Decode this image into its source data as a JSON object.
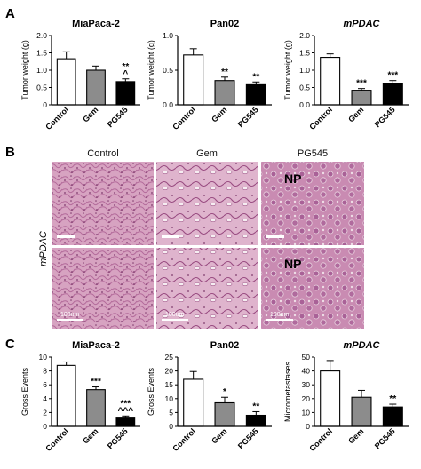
{
  "panel_letters": [
    "A",
    "B",
    "C"
  ],
  "histology": {
    "columns": [
      "Control",
      "Gem",
      "PG545"
    ],
    "row_label": "mPDAC",
    "np_label": "NP",
    "scale_label": "100um"
  },
  "colors": {
    "Control": "#ffffff",
    "Gem": "#8c8c8c",
    "PG545": "#000000",
    "tissue_pink": "#d9a6c3",
    "tissue_dark": "#a0588a"
  },
  "chart_data": [
    {
      "type": "bar",
      "title": "MiaPaca-2",
      "title_italic": false,
      "ylabel": "Tumor weight (g)",
      "categories": [
        "Control",
        "Gem",
        "PG545"
      ],
      "values": [
        1.33,
        1.0,
        0.67
      ],
      "errors": [
        0.2,
        0.12,
        0.08
      ],
      "ylim": [
        0,
        2.0
      ],
      "yticks": [
        "0",
        "0.5",
        "1.0",
        "1.5",
        "2.0"
      ],
      "annotations": [
        "",
        "",
        "**\n^"
      ]
    },
    {
      "type": "bar",
      "title": "Pan02",
      "title_italic": false,
      "ylabel": "Tumor weight (g)",
      "categories": [
        "Control",
        "Gem",
        "PG545"
      ],
      "values": [
        0.72,
        0.35,
        0.29
      ],
      "errors": [
        0.09,
        0.05,
        0.04
      ],
      "ylim": [
        0,
        1.0
      ],
      "yticks": [
        "0.0",
        "0.5",
        "1.0"
      ],
      "annotations": [
        "",
        "**",
        "**"
      ]
    },
    {
      "type": "bar",
      "title": "mPDAC",
      "title_italic": true,
      "ylabel": "Tumor weight (g)",
      "categories": [
        "Control",
        "Gem",
        "PG545"
      ],
      "values": [
        1.37,
        0.42,
        0.62
      ],
      "errors": [
        0.1,
        0.05,
        0.08
      ],
      "ylim": [
        0,
        2.0
      ],
      "yticks": [
        "0.0",
        "0.5",
        "1.0",
        "1.5",
        "2.0"
      ],
      "annotations": [
        "",
        "***",
        "***"
      ]
    },
    {
      "type": "bar",
      "title": "MiaPaca-2",
      "title_italic": false,
      "ylabel": "Gross Events",
      "categories": [
        "Control",
        "Gem",
        "PG545"
      ],
      "values": [
        8.8,
        5.3,
        1.2
      ],
      "errors": [
        0.5,
        0.4,
        0.3
      ],
      "ylim": [
        0,
        10
      ],
      "yticks": [
        "0",
        "2",
        "4",
        "6",
        "8",
        "10"
      ],
      "annotations": [
        "",
        "***",
        "***\n^^^"
      ]
    },
    {
      "type": "bar",
      "title": "Pan02",
      "title_italic": false,
      "ylabel": "Gross Events",
      "categories": [
        "Control",
        "Gem",
        "PG545"
      ],
      "values": [
        17,
        8.5,
        4
      ],
      "errors": [
        2.8,
        2.0,
        1.3
      ],
      "ylim": [
        0,
        25
      ],
      "yticks": [
        "0",
        "5",
        "10",
        "15",
        "20",
        "25"
      ],
      "annotations": [
        "",
        "*",
        "**"
      ]
    },
    {
      "type": "bar",
      "title": "mPDAC",
      "title_italic": true,
      "ylabel": "Micrometastases",
      "categories": [
        "Control",
        "Gem",
        "PG545"
      ],
      "values": [
        40,
        21,
        14
      ],
      "errors": [
        7.5,
        5,
        2
      ],
      "ylim": [
        0,
        50
      ],
      "yticks": [
        "0",
        "10",
        "20",
        "30",
        "40",
        "50"
      ],
      "annotations": [
        "",
        "",
        "**"
      ]
    }
  ]
}
